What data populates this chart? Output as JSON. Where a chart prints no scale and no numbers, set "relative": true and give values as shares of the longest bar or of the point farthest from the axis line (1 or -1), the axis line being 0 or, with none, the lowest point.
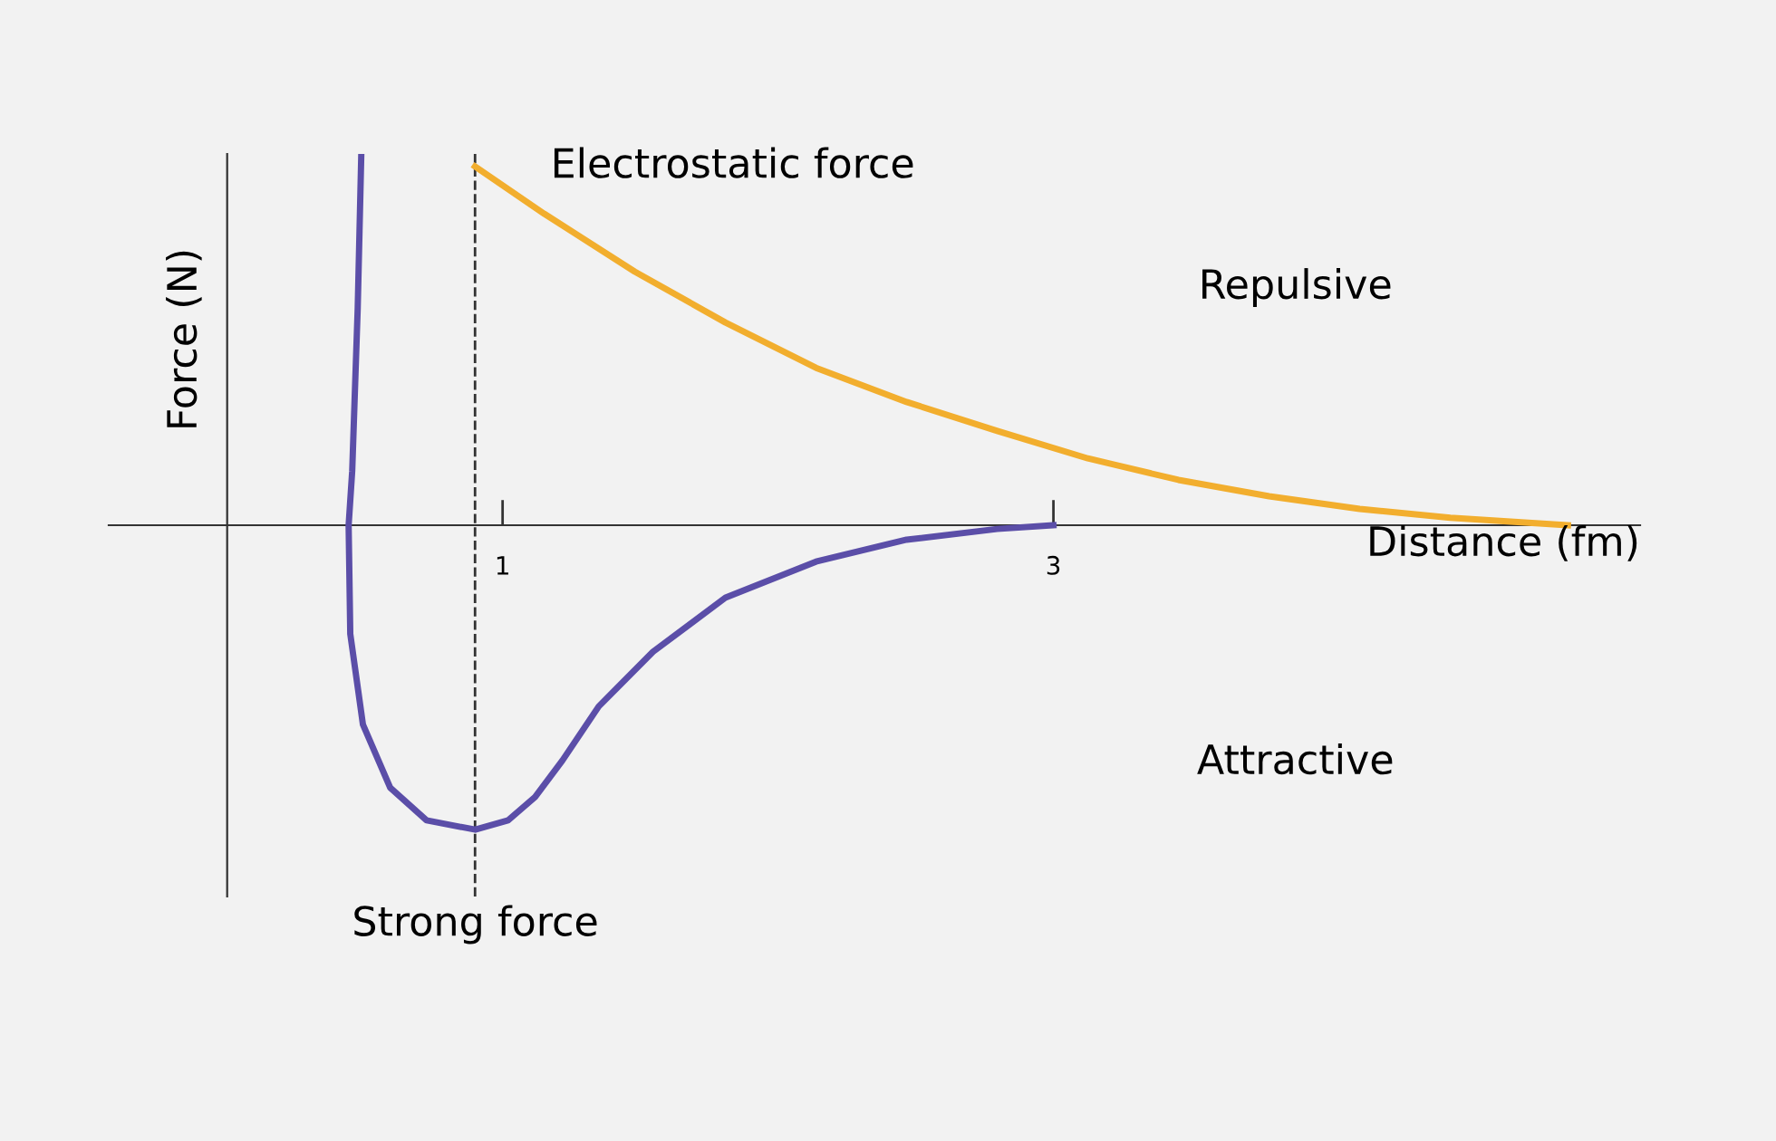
{
  "chart_data": {
    "type": "line",
    "relative": true,
    "xlabel": "Distance (fm)",
    "ylabel": "Force (N)",
    "xlim": [
      -0.43,
      5.13
    ],
    "xticks": [
      1,
      3
    ],
    "grid": false,
    "marker": "none",
    "line_style": "solid",
    "annotations": [
      "Repulsive",
      "Attractive"
    ],
    "ref_lines": [
      {
        "axis": "x",
        "value": 0.9,
        "label": null,
        "color": "#333333",
        "line_style": "dashed"
      }
    ],
    "series": [
      {
        "name": "Strong force",
        "color": "#5b4ea8",
        "x": [
          0.487,
          0.474,
          0.454,
          0.441,
          0.447,
          0.493,
          0.592,
          0.724,
          0.901,
          1.02,
          1.118,
          1.217,
          1.349,
          1.546,
          1.809,
          2.138,
          2.467,
          2.796,
          3.0
        ],
        "values": [
          1.0,
          0.585,
          0.146,
          0,
          -0.293,
          -0.537,
          -0.707,
          -0.795,
          -0.82,
          -0.795,
          -0.732,
          -0.634,
          -0.488,
          -0.341,
          -0.195,
          -0.098,
          -0.039,
          -0.01,
          0
        ]
      },
      {
        "name": "Electrostatic force",
        "color": "#f2ae2e",
        "x": [
          0.9,
          1.151,
          1.48,
          1.809,
          2.138,
          2.467,
          2.796,
          3.125,
          3.454,
          3.783,
          4.112,
          4.441,
          4.868
        ],
        "values": [
          0.966,
          0.839,
          0.683,
          0.546,
          0.424,
          0.332,
          0.254,
          0.18,
          0.122,
          0.078,
          0.044,
          0.02,
          0
        ]
      }
    ]
  }
}
